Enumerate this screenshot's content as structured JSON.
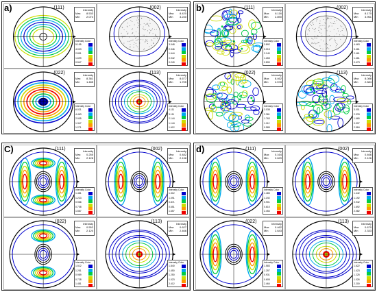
{
  "palette": [
    "#0000cc",
    "#00aaee",
    "#00cc44",
    "#ccdd00",
    "#ff9900",
    "#ee0000"
  ],
  "legend_headers": {
    "intensity": "Intensity",
    "color": "Color"
  },
  "stat_headers": {
    "title": "Intensity",
    "max": "Max",
    "min": "Min"
  },
  "panels": [
    {
      "label": "a)",
      "poles": [
        {
          "plane": "(111)",
          "max": "8.533",
          "min": "2.074",
          "pattern": "ring",
          "legend": [
            "5.155",
            "4.003",
            "2.851",
            "1.699",
            "0.547"
          ]
        },
        {
          "plane": "(002)",
          "max": "8.420",
          "min": "3.240",
          "pattern": "dots",
          "legend": [
            "3.048",
            "2.346",
            "1.644",
            "0.942",
            "0.240"
          ]
        },
        {
          "plane": "(022)",
          "max": "8.381",
          "min": "1.485",
          "pattern": "rings",
          "legend": [
            "6.021",
            "4.463",
            "2.905",
            "1.347",
            "1.271"
          ]
        },
        {
          "plane": "(113)",
          "max": "8.677",
          "min": "1.705",
          "pattern": "center",
          "legend": [
            "4.111",
            "3.111",
            "2.144",
            "1.144",
            "1.612"
          ]
        }
      ]
    },
    {
      "label": "b)",
      "poles": [
        {
          "plane": "(111)",
          "max": "8.116",
          "min": "2.890",
          "pattern": "noise",
          "legend": [
            "3.892",
            "3.015",
            "2.140",
            "1.263",
            "2.890"
          ]
        },
        {
          "plane": "(002)",
          "max": "8.170",
          "min": "3.961",
          "pattern": "dots",
          "legend": [
            "4.463",
            "3.461",
            "2.461",
            "1.461",
            "0.473"
          ]
        },
        {
          "plane": "(022)",
          "max": "8.462",
          "min": "2.578",
          "pattern": "noise",
          "legend": [
            "3.038",
            "2.381",
            "1.763",
            "1.112",
            "0.585"
          ]
        },
        {
          "plane": "(113)",
          "max": "8.088",
          "min": "2.584",
          "pattern": "noise",
          "legend": [
            "3.001",
            "2.333",
            "1.665",
            "0.997",
            "2.584"
          ]
        }
      ]
    },
    {
      "label": "C)",
      "poles": [
        {
          "plane": "(111)",
          "max": "0.255",
          "min": "2.128",
          "pattern": "fourfold",
          "legend": [
            "1.481",
            "1.223",
            "0.966",
            "0.708",
            "1.567"
          ]
        },
        {
          "plane": "(002)",
          "max": "0.482",
          "min": "2.138",
          "pattern": "vbands",
          "legend": [
            "1.312",
            "1.091",
            "0.871",
            "0.651",
            "1.657"
          ]
        },
        {
          "plane": "(022)",
          "max": "0.552",
          "min": "2.120",
          "pattern": "hbands",
          "legend": [
            "1.512",
            "1.251",
            "0.989",
            "0.728",
            "1.481"
          ]
        },
        {
          "plane": "(113)",
          "max": "0.627",
          "min": "2.466",
          "pattern": "center",
          "legend": [
            "1.840",
            "1.450",
            "1.250",
            "1.023",
            "2.412"
          ]
        }
      ]
    },
    {
      "label": "d)",
      "poles": [
        {
          "plane": "(111)",
          "max": "0.164",
          "min": "2.629",
          "pattern": "vbands",
          "legend": [
            "1.483",
            "1.192",
            "0.901",
            "0.610",
            "2.454"
          ]
        },
        {
          "plane": "(002)",
          "max": "0.466",
          "min": "2.126",
          "pattern": "vbands",
          "legend": [
            "1.442",
            "1.192",
            "0.942",
            "1.692",
            "2.082"
          ]
        },
        {
          "plane": "(022)",
          "max": "0.462",
          "min": "2.643",
          "pattern": "vbands",
          "legend": [
            "1.583",
            "1.257",
            "0.931",
            "0.605",
            "2.464"
          ]
        },
        {
          "plane": "(113)",
          "max": "0.670",
          "min": "2.333",
          "pattern": "center",
          "legend": [
            "1.622",
            "1.423",
            "1.225",
            "1.026",
            "2.200"
          ]
        }
      ]
    }
  ]
}
